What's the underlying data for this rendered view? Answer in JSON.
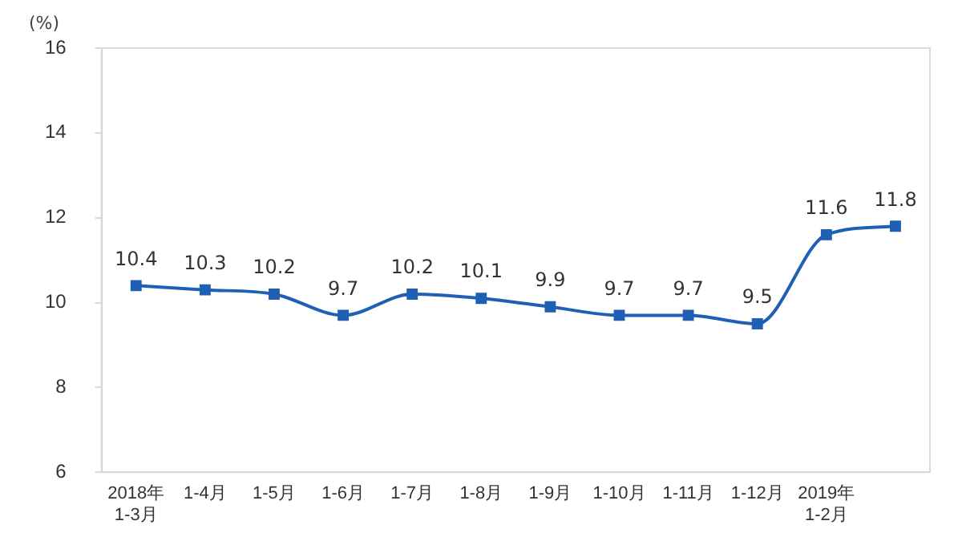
{
  "chart_data": {
    "type": "line",
    "ylabel": "(%)",
    "categories": [
      "2018年\n1-3月",
      "1-4月",
      "1-5月",
      "1-6月",
      "1-7月",
      "1-8月",
      "1-9月",
      "1-10月",
      "1-11月",
      "1-12月",
      "2019年\n1-2月",
      null
    ],
    "series": [
      {
        "color": "#1f5fb4",
        "values": [
          10.4,
          10.3,
          10.2,
          9.7,
          10.2,
          10.1,
          9.9,
          9.7,
          9.7,
          9.5,
          11.6,
          11.8
        ]
      }
    ],
    "ylim": [
      6,
      16
    ],
    "yticks": [
      6,
      8,
      10,
      12,
      14,
      16
    ],
    "grid": false,
    "legend": false,
    "marker": "square",
    "line_style": "solid",
    "data_labels": true
  }
}
